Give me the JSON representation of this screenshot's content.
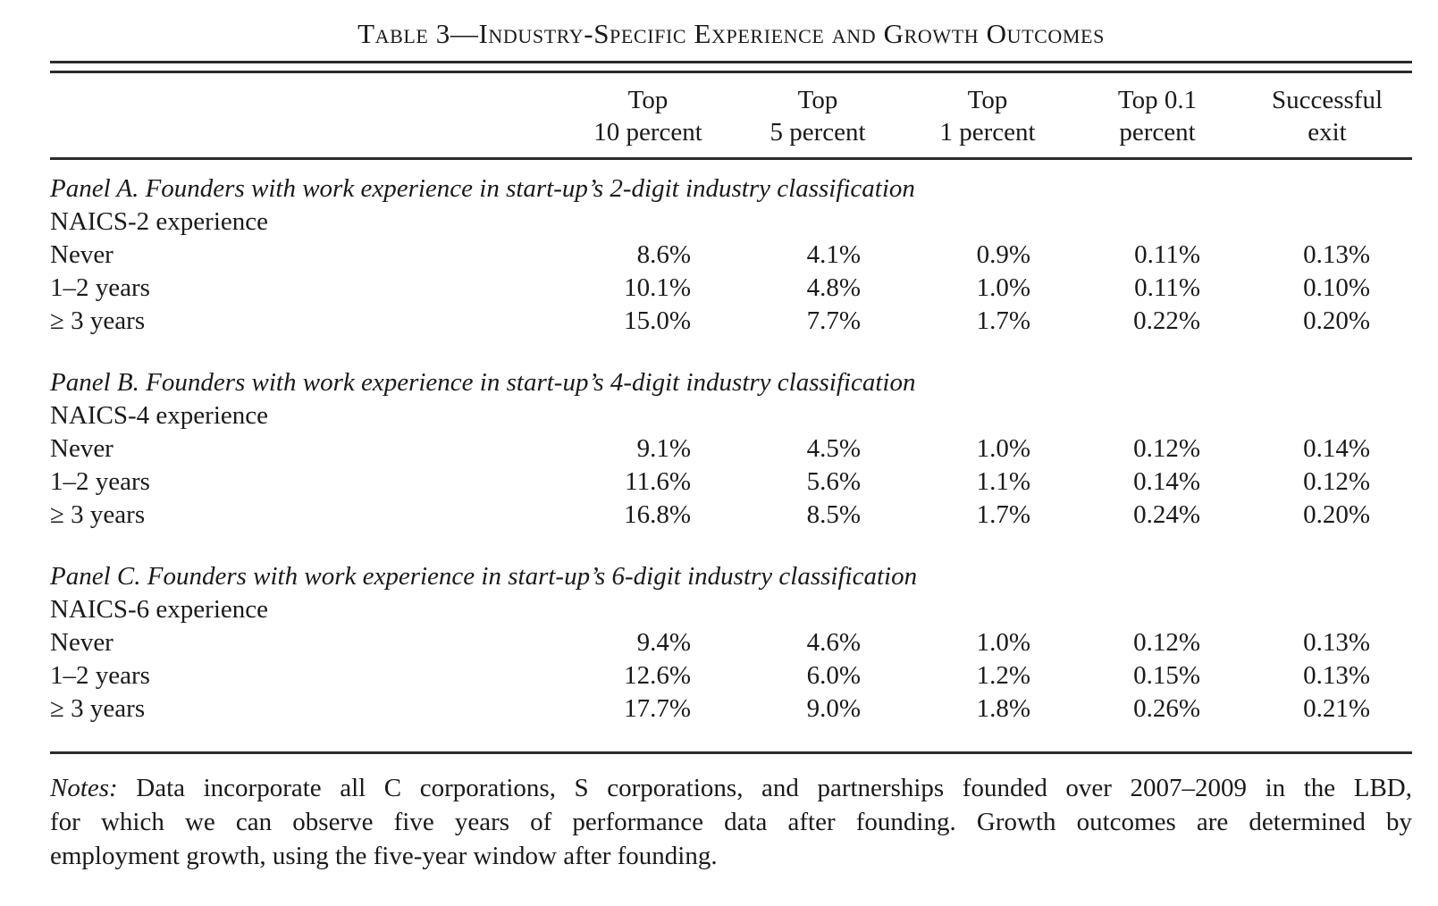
{
  "title": "Table 3—Industry-Specific Experience and Growth Outcomes",
  "columns": [
    {
      "line1": "Top",
      "line2": "10 percent"
    },
    {
      "line1": "Top",
      "line2": "5 percent"
    },
    {
      "line1": "Top",
      "line2": "1 percent"
    },
    {
      "line1": "Top 0.1",
      "line2": "percent"
    },
    {
      "line1": "Successful",
      "line2": "exit"
    }
  ],
  "panels": [
    {
      "heading": "Panel A. Founders with work experience in start-up’s 2-digit industry classification",
      "subheading": "NAICS-2 experience",
      "rows": [
        {
          "label": "Never",
          "values": [
            "8.6%",
            "4.1%",
            "0.9%",
            "0.11%",
            "0.13%"
          ]
        },
        {
          "label": "1–2 years",
          "values": [
            "10.1%",
            "4.8%",
            "1.0%",
            "0.11%",
            "0.10%"
          ]
        },
        {
          "label": "≥ 3 years",
          "values": [
            "15.0%",
            "7.7%",
            "1.7%",
            "0.22%",
            "0.20%"
          ]
        }
      ]
    },
    {
      "heading": "Panel B. Founders with work experience in start-up’s 4-digit industry classification",
      "subheading": "NAICS-4 experience",
      "rows": [
        {
          "label": "Never",
          "values": [
            "9.1%",
            "4.5%",
            "1.0%",
            "0.12%",
            "0.14%"
          ]
        },
        {
          "label": "1–2 years",
          "values": [
            "11.6%",
            "5.6%",
            "1.1%",
            "0.14%",
            "0.12%"
          ]
        },
        {
          "label": "≥ 3 years",
          "values": [
            "16.8%",
            "8.5%",
            "1.7%",
            "0.24%",
            "0.20%"
          ]
        }
      ]
    },
    {
      "heading": "Panel C. Founders with work experience in start-up’s 6-digit industry classification",
      "subheading": "NAICS-6 experience",
      "rows": [
        {
          "label": "Never",
          "values": [
            "9.4%",
            "4.6%",
            "1.0%",
            "0.12%",
            "0.13%"
          ]
        },
        {
          "label": "1–2 years",
          "values": [
            "12.6%",
            "6.0%",
            "1.2%",
            "0.15%",
            "0.13%"
          ]
        },
        {
          "label": "≥ 3 years",
          "values": [
            "17.7%",
            "9.0%",
            "1.8%",
            "0.26%",
            "0.21%"
          ]
        }
      ]
    }
  ],
  "notes": {
    "label": "Notes:",
    "lines": [
      " Data incorporate all C corporations, S corporations, and partnerships founded over 2007–2009 in the LBD,",
      "for which we can observe five years of performance data after founding. Growth outcomes are determined by",
      "employment growth, using the five-year window after founding."
    ]
  }
}
